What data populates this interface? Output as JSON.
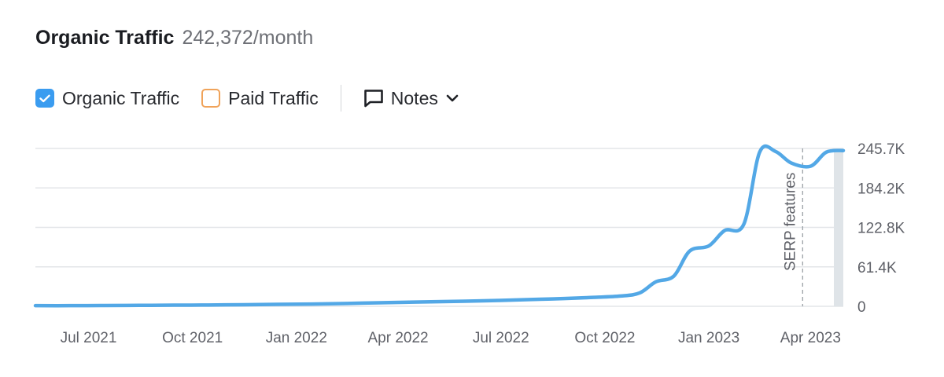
{
  "header": {
    "title": "Organic Traffic",
    "subtitle": "242,372/month"
  },
  "controls": {
    "organic_label": "Organic Traffic",
    "paid_label": "Paid Traffic",
    "notes_label": "Notes"
  },
  "colors": {
    "organic": "#53a8e6",
    "checkbox_checked": "#3a9cf0",
    "paid_border": "#f0a35a",
    "grid": "#e3e5e8",
    "annotation_line": "#9aa0a6"
  },
  "icons": {
    "checkbox": "check-icon",
    "notes": "speech-bubble-icon",
    "dropdown": "chevron-down-icon"
  },
  "chart_data": {
    "type": "line",
    "title": "Organic Traffic",
    "ylim": [
      0,
      245700
    ],
    "y_ticks": [
      0,
      61400,
      122800,
      184200,
      245700
    ],
    "y_tick_labels": [
      "0",
      "61.4K",
      "122.8K",
      "184.2K",
      "245.7K"
    ],
    "xlim": [
      "2021-05-15",
      "2023-04-30"
    ],
    "x_ticks": [
      "2021-07-01",
      "2021-10-01",
      "2022-01-01",
      "2022-04-01",
      "2022-07-01",
      "2022-10-01",
      "2023-01-01",
      "2023-04-01"
    ],
    "x_tick_labels": [
      "Jul 2021",
      "Oct 2021",
      "Jan 2022",
      "Apr 2022",
      "Jul 2022",
      "Oct 2022",
      "Jan 2023",
      "Apr 2023"
    ],
    "grid": true,
    "series": [
      {
        "name": "Organic Traffic",
        "x": [
          "2021-05-15",
          "2021-06-15",
          "2021-07-15",
          "2021-08-15",
          "2021-09-15",
          "2021-10-15",
          "2021-11-15",
          "2021-12-15",
          "2022-01-15",
          "2022-02-15",
          "2022-03-15",
          "2022-04-15",
          "2022-05-15",
          "2022-06-15",
          "2022-07-15",
          "2022-08-15",
          "2022-09-15",
          "2022-10-15",
          "2022-11-01",
          "2022-11-15",
          "2022-12-01",
          "2022-12-15",
          "2023-01-01",
          "2023-01-15",
          "2023-02-01",
          "2023-02-15",
          "2023-03-01",
          "2023-03-15",
          "2023-04-01",
          "2023-04-15",
          "2023-04-30"
        ],
        "values": [
          1000,
          1000,
          1200,
          1500,
          1800,
          2000,
          2500,
          3000,
          3500,
          4500,
          5500,
          6500,
          7500,
          8500,
          10000,
          11500,
          13500,
          16000,
          21000,
          38000,
          47000,
          86000,
          94000,
          118000,
          128000,
          240000,
          241000,
          223000,
          218000,
          240000,
          242400
        ]
      }
    ],
    "annotations": [
      {
        "label": "SERP features",
        "x": "2023-03-25",
        "style": "dashed-vertical"
      }
    ]
  }
}
